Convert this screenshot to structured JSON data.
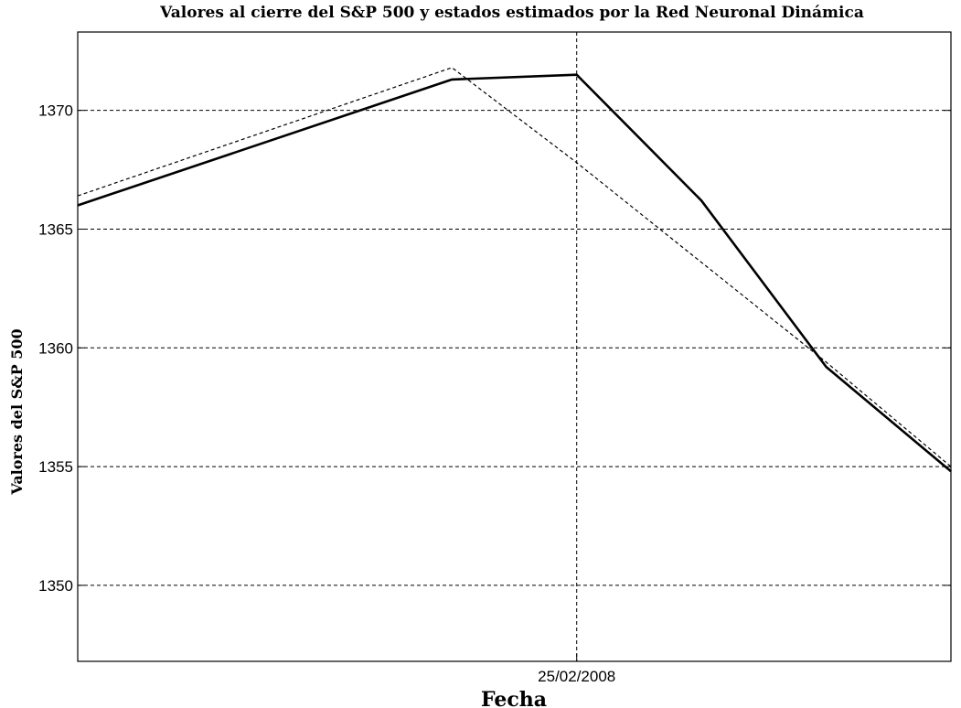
{
  "chart_data": {
    "type": "line",
    "title": "Valores al cierre del S&P 500 y estados estimados por la Red Neuronal Dinámica",
    "xlabel": "Fecha",
    "ylabel": "Valores del S&P 500",
    "xlim": [
      0,
      7
    ],
    "ylim": [
      1346.8,
      1373.3
    ],
    "x_ticks": [
      {
        "x": 4,
        "label": "25/02/2008"
      }
    ],
    "y_ticks": [
      1350,
      1355,
      1360,
      1365,
      1370
    ],
    "grid": true,
    "series": [
      {
        "style": "solid",
        "color": "#000000",
        "x": [
          0,
          3,
          4,
          5,
          6,
          7
        ],
        "y": [
          1366.0,
          1371.3,
          1371.5,
          1366.2,
          1359.2,
          1354.8
        ]
      },
      {
        "style": "dashed",
        "color": "#000000",
        "x": [
          0,
          3,
          4,
          5,
          6,
          7
        ],
        "y": [
          1366.4,
          1371.8,
          1367.8,
          1363.6,
          1359.4,
          1355.0
        ]
      }
    ]
  }
}
